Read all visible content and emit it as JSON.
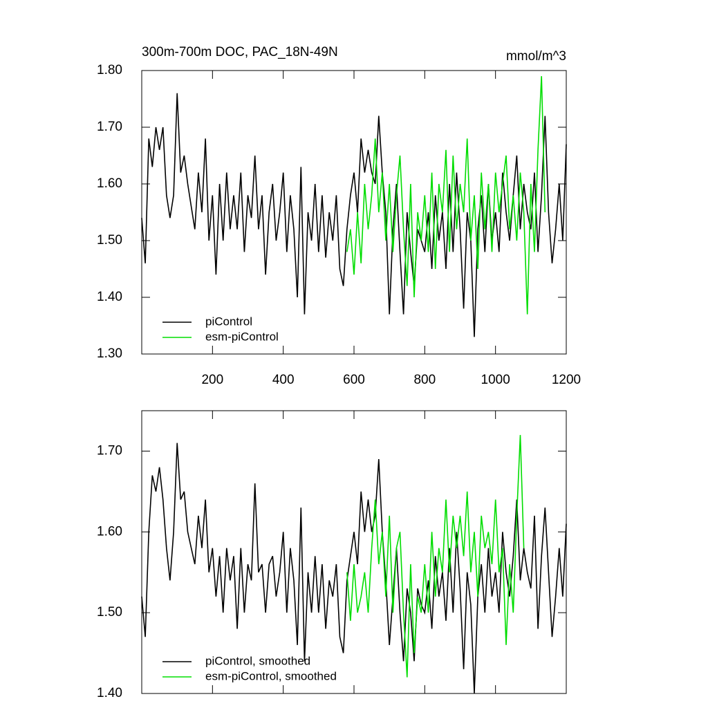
{
  "chart_data": [
    {
      "type": "line",
      "title": "300m-700m DOC, PAC_18N-49N",
      "units": "mmol/m^3",
      "xlim": [
        0,
        1200
      ],
      "xticks": [
        200,
        400,
        600,
        800,
        1000,
        1200
      ],
      "show_xtick_labels": true,
      "ylim": [
        1.3,
        1.8
      ],
      "yticks": [
        {
          "value": 1.3,
          "label": "1.30"
        },
        {
          "value": 1.4,
          "label": "1.40"
        },
        {
          "value": 1.5,
          "label": "1.50"
        },
        {
          "value": 1.6,
          "label": "1.60"
        },
        {
          "value": 1.7,
          "label": "1.70"
        },
        {
          "value": 1.8,
          "label": "1.80"
        }
      ],
      "legend": "lower left",
      "series": [
        {
          "name": "piControl",
          "color": "#000000",
          "x0": 0,
          "dx": 10,
          "values": [
            1.54,
            1.46,
            1.68,
            1.63,
            1.7,
            1.66,
            1.7,
            1.58,
            1.54,
            1.58,
            1.76,
            1.62,
            1.65,
            1.6,
            1.56,
            1.52,
            1.62,
            1.55,
            1.68,
            1.5,
            1.58,
            1.44,
            1.6,
            1.5,
            1.62,
            1.52,
            1.58,
            1.52,
            1.62,
            1.48,
            1.58,
            1.54,
            1.65,
            1.52,
            1.58,
            1.44,
            1.55,
            1.6,
            1.5,
            1.55,
            1.62,
            1.48,
            1.58,
            1.52,
            1.4,
            1.63,
            1.37,
            1.55,
            1.5,
            1.6,
            1.48,
            1.58,
            1.47,
            1.55,
            1.5,
            1.58,
            1.45,
            1.42,
            1.52,
            1.58,
            1.62,
            1.55,
            1.68,
            1.62,
            1.66,
            1.62,
            1.6,
            1.72,
            1.62,
            1.55,
            1.37,
            1.52,
            1.6,
            1.48,
            1.37,
            1.55,
            1.48,
            1.42,
            1.52,
            1.5,
            1.48,
            1.55,
            1.45,
            1.58,
            1.5,
            1.55,
            1.45,
            1.6,
            1.48,
            1.62,
            1.52,
            1.38,
            1.55,
            1.5,
            1.33,
            1.52,
            1.58,
            1.48,
            1.6,
            1.5,
            1.55,
            1.48,
            1.62,
            1.55,
            1.5,
            1.58,
            1.65,
            1.52,
            1.6,
            1.55,
            1.52,
            1.62,
            1.48,
            1.58,
            1.72,
            1.55,
            1.46,
            1.52,
            1.6,
            1.5,
            1.67
          ]
        },
        {
          "name": "esm-piControl",
          "color": "#00dd00",
          "x0": 580,
          "dx": 10,
          "values": [
            1.48,
            1.52,
            1.44,
            1.55,
            1.46,
            1.6,
            1.52,
            1.58,
            1.68,
            1.55,
            1.62,
            1.5,
            1.6,
            1.48,
            1.58,
            1.65,
            1.52,
            1.42,
            1.6,
            1.4,
            1.55,
            1.5,
            1.58,
            1.48,
            1.62,
            1.45,
            1.6,
            1.55,
            1.66,
            1.48,
            1.65,
            1.52,
            1.6,
            1.55,
            1.68,
            1.5,
            1.58,
            1.45,
            1.62,
            1.52,
            1.6,
            1.48,
            1.62,
            1.55,
            1.6,
            1.65,
            1.52,
            1.58,
            1.5,
            1.62,
            1.55,
            1.37,
            1.6,
            1.48,
            1.66,
            1.79,
            1.55
          ]
        }
      ]
    },
    {
      "type": "line",
      "xlim": [
        0,
        1200
      ],
      "xticks": [
        200,
        400,
        600,
        800,
        1000,
        1200
      ],
      "show_xtick_labels": false,
      "ylim": [
        1.4,
        1.75
      ],
      "yticks": [
        {
          "value": 1.4,
          "label": "1.40"
        },
        {
          "value": 1.5,
          "label": "1.50"
        },
        {
          "value": 1.6,
          "label": "1.60"
        },
        {
          "value": 1.7,
          "label": "1.70"
        }
      ],
      "legend": "lower left",
      "series": [
        {
          "name": "piControl, smoothed",
          "color": "#000000",
          "x0": 0,
          "dx": 10,
          "values": [
            1.52,
            1.47,
            1.6,
            1.67,
            1.65,
            1.68,
            1.64,
            1.58,
            1.54,
            1.6,
            1.71,
            1.64,
            1.65,
            1.6,
            1.58,
            1.56,
            1.62,
            1.58,
            1.64,
            1.55,
            1.58,
            1.52,
            1.57,
            1.5,
            1.58,
            1.54,
            1.57,
            1.48,
            1.58,
            1.5,
            1.56,
            1.54,
            1.66,
            1.55,
            1.56,
            1.5,
            1.56,
            1.57,
            1.52,
            1.55,
            1.6,
            1.5,
            1.58,
            1.54,
            1.46,
            1.63,
            1.44,
            1.55,
            1.5,
            1.57,
            1.5,
            1.56,
            1.48,
            1.54,
            1.52,
            1.56,
            1.47,
            1.45,
            1.54,
            1.57,
            1.6,
            1.56,
            1.65,
            1.6,
            1.64,
            1.6,
            1.62,
            1.69,
            1.6,
            1.54,
            1.46,
            1.52,
            1.58,
            1.5,
            1.44,
            1.53,
            1.5,
            1.44,
            1.53,
            1.51,
            1.5,
            1.54,
            1.48,
            1.57,
            1.52,
            1.55,
            1.49,
            1.58,
            1.5,
            1.6,
            1.53,
            1.43,
            1.55,
            1.51,
            1.4,
            1.52,
            1.56,
            1.5,
            1.58,
            1.52,
            1.55,
            1.5,
            1.6,
            1.55,
            1.52,
            1.57,
            1.64,
            1.54,
            1.58,
            1.55,
            1.53,
            1.62,
            1.48,
            1.57,
            1.63,
            1.55,
            1.47,
            1.52,
            1.58,
            1.52,
            1.61
          ]
        },
        {
          "name": "esm-piControl, smoothed",
          "color": "#00dd00",
          "x0": 580,
          "dx": 10,
          "values": [
            1.55,
            1.49,
            1.56,
            1.5,
            1.52,
            1.55,
            1.5,
            1.58,
            1.64,
            1.56,
            1.6,
            1.52,
            1.62,
            1.5,
            1.58,
            1.6,
            1.5,
            1.42,
            1.56,
            1.45,
            1.52,
            1.5,
            1.56,
            1.5,
            1.6,
            1.52,
            1.58,
            1.55,
            1.64,
            1.55,
            1.62,
            1.58,
            1.62,
            1.57,
            1.65,
            1.55,
            1.6,
            1.52,
            1.62,
            1.58,
            1.6,
            1.56,
            1.64,
            1.55,
            1.58,
            1.46,
            1.56,
            1.5,
            1.62,
            1.72,
            1.58
          ]
        }
      ]
    }
  ]
}
